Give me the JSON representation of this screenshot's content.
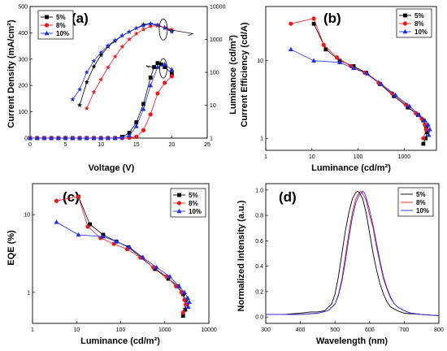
{
  "colors": {
    "s5": "#000000",
    "s8": "#e8191c",
    "s10": "#1f2fe0"
  },
  "chart_data": [
    {
      "type": "line",
      "panel_label": "(a)",
      "xlabel": "Voltage (V)",
      "ylabel": "Current Density (mA/cm²)",
      "y2label": "Luminance (cd/m²)",
      "xlim": [
        0,
        25
      ],
      "ylim": [
        0,
        500
      ],
      "y2lim": [
        1,
        10000
      ],
      "y2scale": "log",
      "xticks": [
        "0",
        "5",
        "10",
        "15",
        "20",
        "25"
      ],
      "yticks": [
        "0",
        "100",
        "200",
        "300",
        "400",
        "500"
      ],
      "y2ticks": [
        "1",
        "10",
        "100",
        "1000",
        "10000"
      ],
      "legend": [
        "5%",
        "8%",
        "10%"
      ],
      "series": [
        {
          "name": "5%",
          "axis": "left",
          "marker": "square",
          "x": [
            0,
            1,
            2,
            3,
            4,
            5,
            6,
            7,
            8,
            9,
            10,
            11,
            12,
            13,
            14,
            15,
            16,
            17,
            17.5,
            18,
            18.5,
            19,
            20
          ],
          "y": [
            0,
            0,
            0,
            0,
            0,
            0,
            0,
            0,
            0,
            0,
            0,
            0,
            0,
            5,
            20,
            60,
            130,
            230,
            270,
            285,
            280,
            270,
            245
          ]
        },
        {
          "name": "8%",
          "axis": "left",
          "marker": "circle",
          "x": [
            0,
            1,
            2,
            3,
            4,
            5,
            6,
            7,
            8,
            9,
            10,
            11,
            12,
            13,
            14,
            15,
            16,
            17,
            18,
            19,
            20
          ],
          "y": [
            0,
            0,
            0,
            0,
            0,
            0,
            0,
            0,
            0,
            0,
            0,
            0,
            0,
            0,
            1,
            5,
            30,
            90,
            170,
            210,
            235
          ]
        },
        {
          "name": "10%",
          "axis": "left",
          "marker": "triangle",
          "x": [
            0,
            1,
            2,
            3,
            4,
            5,
            6,
            7,
            8,
            9,
            10,
            11,
            12,
            13,
            14,
            15,
            16,
            17,
            18,
            19,
            20
          ],
          "y": [
            0,
            0,
            0,
            0,
            0,
            0,
            0,
            0,
            0,
            0,
            0,
            0,
            0,
            2,
            10,
            45,
            110,
            200,
            270,
            280,
            260
          ]
        },
        {
          "name": "5%",
          "axis": "right",
          "marker": "star",
          "x": [
            7,
            8,
            9,
            10,
            11,
            12,
            13,
            14,
            15,
            16,
            17,
            18,
            19,
            20
          ],
          "y": [
            10,
            50,
            150,
            330,
            600,
            900,
            1300,
            1700,
            2200,
            2800,
            3000,
            2600,
            2300,
            1800
          ]
        },
        {
          "name": "8%",
          "axis": "right",
          "marker": "star",
          "x": [
            8,
            9,
            10,
            11,
            12,
            13,
            14,
            15,
            16,
            17,
            18,
            19,
            20
          ],
          "y": [
            8,
            25,
            60,
            140,
            300,
            600,
            1000,
            1500,
            2000,
            2500,
            2600,
            2300,
            2000
          ]
        },
        {
          "name": "10%",
          "axis": "right",
          "marker": "star",
          "x": [
            6,
            7,
            8,
            9,
            10,
            11,
            12,
            13,
            14,
            15,
            16,
            17,
            18,
            19,
            20
          ],
          "y": [
            15,
            30,
            100,
            220,
            400,
            650,
            950,
            1300,
            1700,
            2200,
            2600,
            3000,
            2800,
            2200,
            1700
          ]
        }
      ]
    },
    {
      "type": "line",
      "panel_label": "(b)",
      "xlabel": "Luminance (cd/m²)",
      "ylabel": "Current Efficiency (cd/A)",
      "xscale": "log",
      "yscale": "log",
      "xlim": [
        1,
        5000
      ],
      "ylim": [
        0.7,
        50
      ],
      "xticks": [
        "1",
        "10",
        "100",
        "1000"
      ],
      "yticks": [
        "1",
        "10"
      ],
      "legend": [
        "5%",
        "8%",
        "10%"
      ],
      "series": [
        {
          "name": "5%",
          "marker": "square",
          "x": [
            11,
            20,
            40,
            80,
            150,
            300,
            600,
            1200,
            2000,
            2600,
            3000,
            3100,
            2900,
            2600
          ],
          "y": [
            30,
            14,
            10,
            8.5,
            7,
            5,
            3.5,
            2.5,
            2.0,
            1.7,
            1.4,
            1.2,
            1.0,
            0.85
          ]
        },
        {
          "name": "8%",
          "marker": "circle",
          "x": [
            3.5,
            11,
            18,
            35,
            70,
            140,
            280,
            550,
            1100,
            1800,
            2400,
            2800,
            3000,
            2600
          ],
          "y": [
            30,
            35,
            16,
            11,
            8.5,
            7,
            5.2,
            3.8,
            2.7,
            2.1,
            1.8,
            1.5,
            1.3,
            1.0
          ]
        },
        {
          "name": "10%",
          "marker": "triangle",
          "x": [
            3.5,
            11,
            40,
            80,
            160,
            320,
            650,
            1300,
            2100,
            2800,
            3300,
            3600,
            3400
          ],
          "y": [
            14,
            10,
            9.5,
            8,
            6.8,
            5,
            3.6,
            2.6,
            2.0,
            1.7,
            1.5,
            1.3,
            1.1
          ]
        }
      ]
    },
    {
      "type": "line",
      "panel_label": "(c)",
      "xlabel": "Luminance (cd/m²)",
      "ylabel": "EQE (%)",
      "xscale": "log",
      "yscale": "log",
      "xlim": [
        1,
        10000
      ],
      "ylim": [
        0.4,
        25
      ],
      "xticks": [
        "1",
        "10",
        "100",
        "1000",
        "10000"
      ],
      "yticks": [
        "1",
        "10"
      ],
      "legend": [
        "5%",
        "8%",
        "10%"
      ],
      "series": [
        {
          "name": "5%",
          "marker": "square",
          "x": [
            11,
            20,
            40,
            80,
            150,
            300,
            600,
            1200,
            2000,
            2600,
            3000,
            3100,
            2900,
            2600
          ],
          "y": [
            17,
            7.5,
            5.5,
            4.5,
            3.8,
            2.8,
            2.0,
            1.5,
            1.2,
            0.95,
            0.8,
            0.7,
            0.6,
            0.5
          ]
        },
        {
          "name": "8%",
          "marker": "circle",
          "x": [
            3.5,
            11,
            18,
            35,
            70,
            140,
            280,
            550,
            1100,
            1800,
            2400,
            2800,
            3000,
            2600
          ],
          "y": [
            15,
            17,
            7,
            5,
            4.2,
            3.6,
            2.8,
            2.1,
            1.6,
            1.2,
            1.0,
            0.8,
            0.7,
            0.55
          ]
        },
        {
          "name": "10%",
          "marker": "triangle",
          "x": [
            3.5,
            11,
            40,
            80,
            160,
            320,
            650,
            1300,
            2100,
            2800,
            3300,
            3600,
            3400
          ],
          "y": [
            8,
            5.5,
            5.2,
            4.5,
            3.8,
            2.8,
            2.1,
            1.6,
            1.2,
            1.0,
            0.85,
            0.75,
            0.65
          ]
        }
      ]
    },
    {
      "type": "line",
      "panel_label": "(d)",
      "xlabel": "Wavelength (nm)",
      "ylabel": "Normalized Intensity (a.u.)",
      "xlim": [
        300,
        800
      ],
      "ylim": [
        -0.05,
        1.05
      ],
      "xticks": [
        "300",
        "400",
        "500",
        "600",
        "700",
        "800"
      ],
      "yticks": [
        "0.0",
        "0.2",
        "0.4",
        "0.6",
        "0.8",
        "1.0"
      ],
      "legend": [
        "5%",
        "8%",
        "10%"
      ],
      "series": [
        {
          "name": "5%",
          "x": [
            300,
            350,
            400,
            430,
            450,
            470,
            490,
            500,
            510,
            520,
            530,
            540,
            550,
            560,
            565,
            570,
            580,
            590,
            600,
            610,
            620,
            630,
            640,
            650,
            660,
            680,
            700,
            750,
            800
          ],
          "y": [
            0.02,
            0.02,
            0.03,
            0.04,
            0.04,
            0.05,
            0.1,
            0.18,
            0.32,
            0.5,
            0.68,
            0.82,
            0.93,
            0.98,
            0.99,
            0.98,
            0.93,
            0.82,
            0.66,
            0.5,
            0.37,
            0.26,
            0.18,
            0.12,
            0.08,
            0.05,
            0.03,
            0.02,
            0.01
          ]
        },
        {
          "name": "8%",
          "x": [
            300,
            350,
            400,
            450,
            480,
            500,
            510,
            520,
            530,
            540,
            550,
            560,
            570,
            575,
            580,
            590,
            600,
            610,
            620,
            630,
            640,
            650,
            660,
            670,
            680,
            700,
            720,
            750,
            800
          ],
          "y": [
            0.02,
            0.02,
            0.02,
            0.03,
            0.05,
            0.1,
            0.18,
            0.3,
            0.48,
            0.66,
            0.82,
            0.93,
            0.98,
            0.99,
            0.97,
            0.92,
            0.8,
            0.7,
            0.55,
            0.42,
            0.3,
            0.22,
            0.15,
            0.11,
            0.08,
            0.05,
            0.03,
            0.02,
            0.01
          ]
        },
        {
          "name": "10%",
          "x": [
            300,
            350,
            400,
            450,
            480,
            500,
            510,
            520,
            530,
            540,
            550,
            560,
            570,
            580,
            585,
            590,
            600,
            610,
            620,
            630,
            640,
            650,
            660,
            670,
            680,
            700,
            720,
            750,
            800
          ],
          "y": [
            0.02,
            0.02,
            0.02,
            0.03,
            0.05,
            0.1,
            0.17,
            0.28,
            0.44,
            0.62,
            0.78,
            0.9,
            0.96,
            0.99,
            0.98,
            0.94,
            0.84,
            0.72,
            0.58,
            0.44,
            0.32,
            0.23,
            0.16,
            0.11,
            0.08,
            0.05,
            0.03,
            0.02,
            0.01
          ]
        }
      ]
    }
  ]
}
